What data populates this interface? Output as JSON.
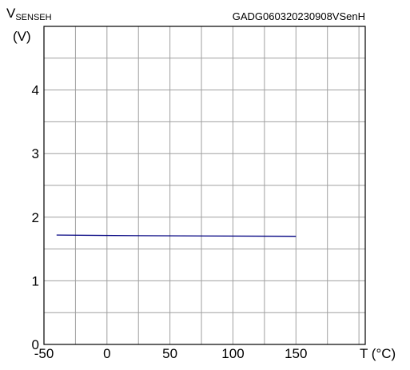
{
  "chart_data": {
    "type": "line",
    "figure_code": "GADG060320230908VSenH",
    "ylabel": {
      "main": "V",
      "sub": "SENSEH",
      "unit": "(V)"
    },
    "xlabel": "T (°C)",
    "xlim": [
      -50,
      205
    ],
    "ylim": [
      0,
      5
    ],
    "x_ticks": [
      -50,
      0,
      50,
      100,
      150
    ],
    "y_ticks": [
      0,
      1,
      2,
      3,
      4
    ],
    "x_gridlines": [
      -25,
      0,
      25,
      50,
      75,
      100,
      125,
      150,
      175,
      200
    ],
    "y_gridlines": [
      0.5,
      1,
      1.5,
      2,
      2.5,
      3,
      3.5,
      4,
      4.5
    ],
    "grid": true,
    "series": [
      {
        "color": "#000080",
        "x": [
          -40,
          25,
          150
        ],
        "y": [
          1.72,
          1.71,
          1.7
        ]
      }
    ]
  }
}
